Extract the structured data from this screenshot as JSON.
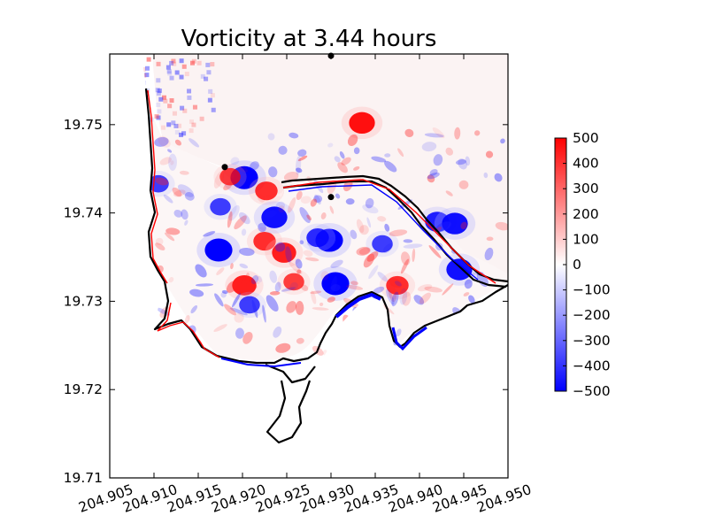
{
  "chart_data": {
    "type": "heatmap",
    "title": "Vorticity at 3.44 hours",
    "xlabel": "",
    "ylabel": "",
    "xlim": [
      204.905,
      204.95
    ],
    "ylim": [
      19.71,
      19.758
    ],
    "x_ticks": [
      "204.905",
      "204.910",
      "204.915",
      "204.920",
      "204.925",
      "204.930",
      "204.935",
      "204.940",
      "204.945",
      "204.950"
    ],
    "y_ticks": [
      "19.71",
      "19.72",
      "19.73",
      "19.74",
      "19.75"
    ],
    "colorbar": {
      "colormap": "bwr",
      "range": [
        -500,
        500
      ],
      "ticks": [
        "500",
        "400",
        "300",
        "200",
        "100",
        "0",
        "−100",
        "−200",
        "−300",
        "−400",
        "−500"
      ]
    },
    "markers": [
      {
        "x": 204.93,
        "y": 19.7578
      },
      {
        "x": 204.918,
        "y": 19.7452
      },
      {
        "x": 204.93,
        "y": 19.7418
      }
    ],
    "vortices": [
      {
        "x": 204.9335,
        "y": 19.7502,
        "sign": "positive",
        "strength": 450
      },
      {
        "x": 204.9202,
        "y": 19.744,
        "sign": "negative",
        "strength": 500
      },
      {
        "x": 204.9186,
        "y": 19.7441,
        "sign": "positive",
        "strength": 300
      },
      {
        "x": 204.9227,
        "y": 19.7425,
        "sign": "positive",
        "strength": 350
      },
      {
        "x": 204.9173,
        "y": 19.7358,
        "sign": "negative",
        "strength": 500
      },
      {
        "x": 204.9225,
        "y": 19.7368,
        "sign": "positive",
        "strength": 350
      },
      {
        "x": 204.9298,
        "y": 19.7369,
        "sign": "negative",
        "strength": 500
      },
      {
        "x": 204.9202,
        "y": 19.7318,
        "sign": "positive",
        "strength": 400
      },
      {
        "x": 204.9247,
        "y": 19.7355,
        "sign": "positive",
        "strength": 400
      },
      {
        "x": 204.9236,
        "y": 19.7395,
        "sign": "negative",
        "strength": 450
      },
      {
        "x": 204.9175,
        "y": 19.7407,
        "sign": "negative",
        "strength": 300
      },
      {
        "x": 204.9285,
        "y": 19.7372,
        "sign": "negative",
        "strength": 350
      },
      {
        "x": 204.9305,
        "y": 19.732,
        "sign": "negative",
        "strength": 500
      },
      {
        "x": 204.9258,
        "y": 19.7322,
        "sign": "positive",
        "strength": 300
      },
      {
        "x": 204.9375,
        "y": 19.7318,
        "sign": "positive",
        "strength": 350
      },
      {
        "x": 204.942,
        "y": 19.739,
        "sign": "negative",
        "strength": 400
      },
      {
        "x": 204.944,
        "y": 19.7388,
        "sign": "negative",
        "strength": 450
      },
      {
        "x": 204.9445,
        "y": 19.7336,
        "sign": "negative",
        "strength": 450
      },
      {
        "x": 204.9208,
        "y": 19.7296,
        "sign": "negative",
        "strength": 300
      },
      {
        "x": 204.9358,
        "y": 19.7365,
        "sign": "negative",
        "strength": 300
      },
      {
        "x": 204.9105,
        "y": 19.7433,
        "sign": "negative",
        "strength": 300
      }
    ]
  }
}
